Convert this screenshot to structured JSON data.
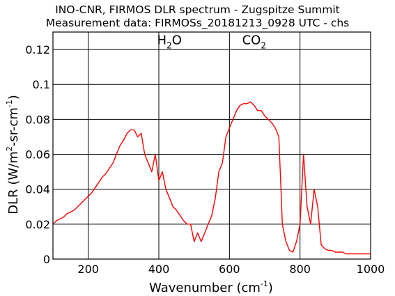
{
  "chart_data": {
    "type": "line",
    "title": "INO-CNR, FIRMOS DLR spectrum - Zugspitze Summit",
    "subtitle": "Measurement data: FIRMOSs_20181213_0928 UTC - chs",
    "xlabel": {
      "main": "Wavenumber (cm",
      "sup": "-1",
      "close": ")"
    },
    "ylabel": {
      "a": "DLR (W/m",
      "sup1": "2",
      "b": "-sr-cm",
      "sup2": "-1",
      "c": ")"
    },
    "xlim": [
      100,
      1000
    ],
    "ylim": [
      0,
      0.13
    ],
    "xticks": [
      200,
      400,
      600,
      800,
      1000
    ],
    "xtick_labels": [
      "200",
      "400",
      "600",
      "800",
      "1000"
    ],
    "yticks": [
      0,
      0.02,
      0.04,
      0.06,
      0.08,
      0.1,
      0.12
    ],
    "ytick_labels": [
      "0",
      "0.02",
      "0.04",
      "0.06",
      "0.08",
      "0.1",
      "0.12"
    ],
    "grid": true,
    "line_color": "#ff0000",
    "annotations": [
      {
        "base": "H",
        "sub": "2",
        "rest": "O",
        "x": 430,
        "y": 0.123
      },
      {
        "base": "CO",
        "sub": "2",
        "rest": "",
        "x": 670,
        "y": 0.123
      }
    ],
    "series": [
      {
        "x": [
          100,
          110,
          120,
          130,
          140,
          150,
          160,
          170,
          180,
          190,
          200,
          210,
          220,
          230,
          240,
          250,
          260,
          270,
          280,
          290,
          300,
          310,
          320,
          330,
          340,
          350,
          360,
          370,
          380,
          390,
          400,
          410,
          420,
          430,
          440,
          450,
          460,
          470,
          480,
          490,
          500,
          510,
          520,
          530,
          540,
          550,
          560,
          570,
          580,
          590,
          600,
          610,
          620,
          630,
          640,
          650,
          660,
          670,
          680,
          690,
          700,
          710,
          720,
          730,
          740,
          750,
          760,
          770,
          780,
          790,
          800,
          810,
          820,
          830,
          840,
          850,
          860,
          870,
          880,
          890,
          900,
          910,
          920,
          930,
          940,
          950,
          960,
          970,
          980,
          990,
          1000
        ],
        "y": [
          0.02,
          0.022,
          0.023,
          0.024,
          0.026,
          0.027,
          0.028,
          0.03,
          0.032,
          0.034,
          0.036,
          0.038,
          0.041,
          0.044,
          0.047,
          0.049,
          0.052,
          0.055,
          0.06,
          0.065,
          0.068,
          0.072,
          0.074,
          0.074,
          0.07,
          0.072,
          0.06,
          0.055,
          0.05,
          0.06,
          0.045,
          0.05,
          0.04,
          0.035,
          0.03,
          0.028,
          0.025,
          0.022,
          0.02,
          0.02,
          0.01,
          0.015,
          0.01,
          0.015,
          0.02,
          0.025,
          0.035,
          0.05,
          0.055,
          0.07,
          0.075,
          0.08,
          0.085,
          0.088,
          0.089,
          0.089,
          0.09,
          0.088,
          0.085,
          0.085,
          0.082,
          0.08,
          0.078,
          0.075,
          0.07,
          0.02,
          0.01,
          0.005,
          0.004,
          0.01,
          0.02,
          0.06,
          0.03,
          0.02,
          0.04,
          0.03,
          0.008,
          0.006,
          0.005,
          0.005,
          0.004,
          0.004,
          0.004,
          0.003,
          0.003,
          0.003,
          0.003,
          0.003,
          0.003,
          0.003,
          0.003
        ]
      }
    ]
  }
}
